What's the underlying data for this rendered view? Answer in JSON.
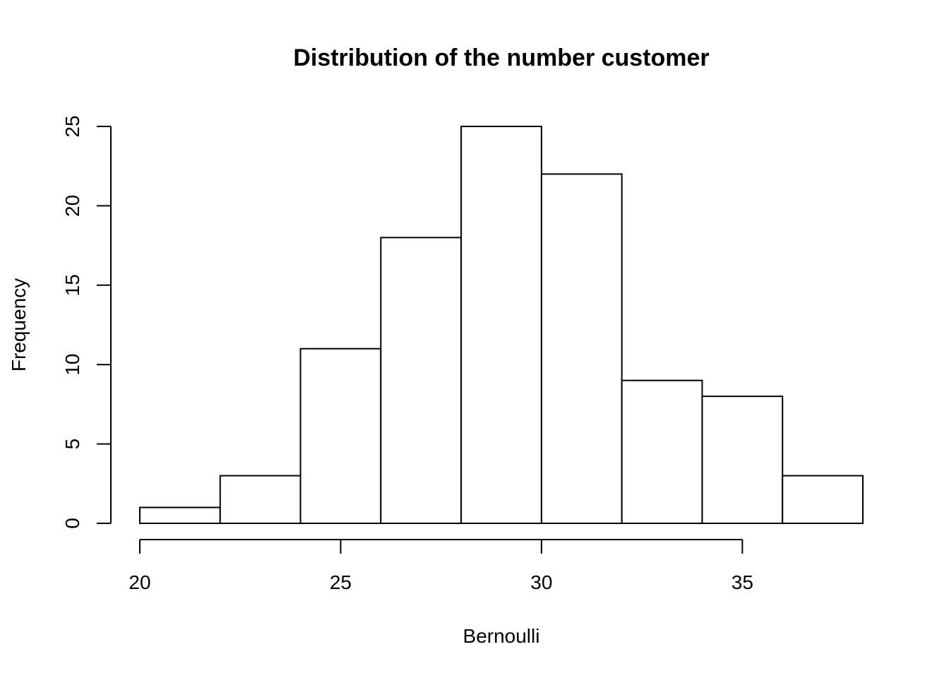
{
  "chart_data": {
    "type": "bar",
    "title": "Distribution of the number customer",
    "xlabel": "Bernoulli",
    "ylabel": "Frequency",
    "bins": [
      {
        "start": 20,
        "end": 22,
        "count": 1
      },
      {
        "start": 22,
        "end": 24,
        "count": 3
      },
      {
        "start": 24,
        "end": 26,
        "count": 11
      },
      {
        "start": 26,
        "end": 28,
        "count": 18
      },
      {
        "start": 28,
        "end": 30,
        "count": 25
      },
      {
        "start": 30,
        "end": 32,
        "count": 22
      },
      {
        "start": 32,
        "end": 34,
        "count": 9
      },
      {
        "start": 34,
        "end": 36,
        "count": 8
      },
      {
        "start": 36,
        "end": 38,
        "count": 3
      }
    ],
    "xlim": [
      20,
      38
    ],
    "ylim": [
      0,
      25
    ],
    "xticks": [
      20,
      25,
      30,
      35
    ],
    "yticks": [
      0,
      5,
      10,
      15,
      20,
      25
    ],
    "grid": false,
    "colors": {
      "bar_fill": "#ffffff",
      "bar_stroke": "#000000"
    }
  }
}
